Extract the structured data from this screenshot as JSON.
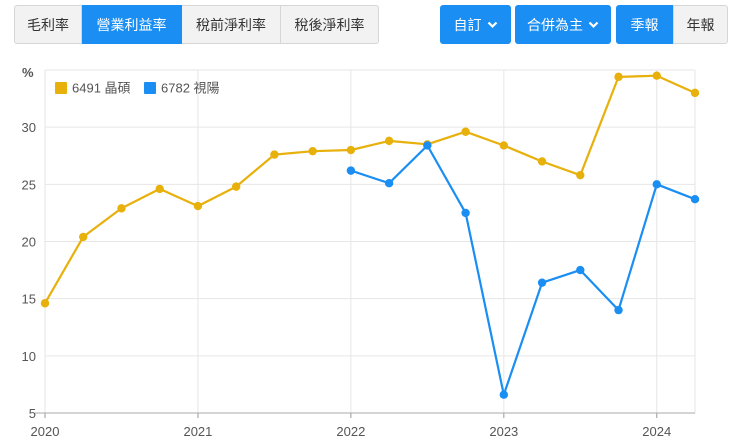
{
  "metric_tabs": [
    {
      "label": "毛利率",
      "active": false
    },
    {
      "label": "營業利益率",
      "active": true
    },
    {
      "label": "稅前淨利率",
      "active": false
    },
    {
      "label": "稅後淨利率",
      "active": false
    }
  ],
  "controls": {
    "custom_label": "自訂",
    "scope_label": "合併為主",
    "quarterly_label": "季報",
    "annual_label": "年報"
  },
  "colors": {
    "accent": "#1a8ef2",
    "series_6491": "#e8b00b",
    "series_6782": "#1a8ef2",
    "grid": "#e6e6e6"
  },
  "chart_data": {
    "type": "line",
    "ylabel": "%",
    "ylim": [
      5,
      35
    ],
    "yticks": [
      5,
      10,
      15,
      20,
      25,
      30
    ],
    "xlim": [
      2020.0,
      2024.25
    ],
    "xticks": [
      2020,
      2021,
      2022,
      2023,
      2024
    ],
    "grid": true,
    "legend_position": "top-left",
    "series": [
      {
        "name": "6491 晶碩",
        "color": "#e8b00b",
        "x": [
          2020.0,
          2020.25,
          2020.5,
          2020.75,
          2021.0,
          2021.25,
          2021.5,
          2021.75,
          2022.0,
          2022.25,
          2022.5,
          2022.75,
          2023.0,
          2023.25,
          2023.5,
          2023.75,
          2024.0,
          2024.25
        ],
        "y": [
          14.6,
          20.4,
          22.9,
          24.6,
          23.1,
          24.8,
          27.6,
          27.9,
          28.0,
          28.8,
          28.5,
          29.6,
          28.4,
          27.0,
          25.8,
          34.4,
          34.5,
          33.0
        ]
      },
      {
        "name": "6782 視陽",
        "color": "#1a8ef2",
        "x": [
          2022.0,
          2022.25,
          2022.5,
          2022.75,
          2023.0,
          2023.25,
          2023.5,
          2023.75,
          2024.0,
          2024.25
        ],
        "y": [
          26.2,
          25.1,
          28.4,
          22.5,
          6.6,
          16.4,
          17.5,
          14.0,
          25.0,
          23.7
        ]
      }
    ]
  }
}
